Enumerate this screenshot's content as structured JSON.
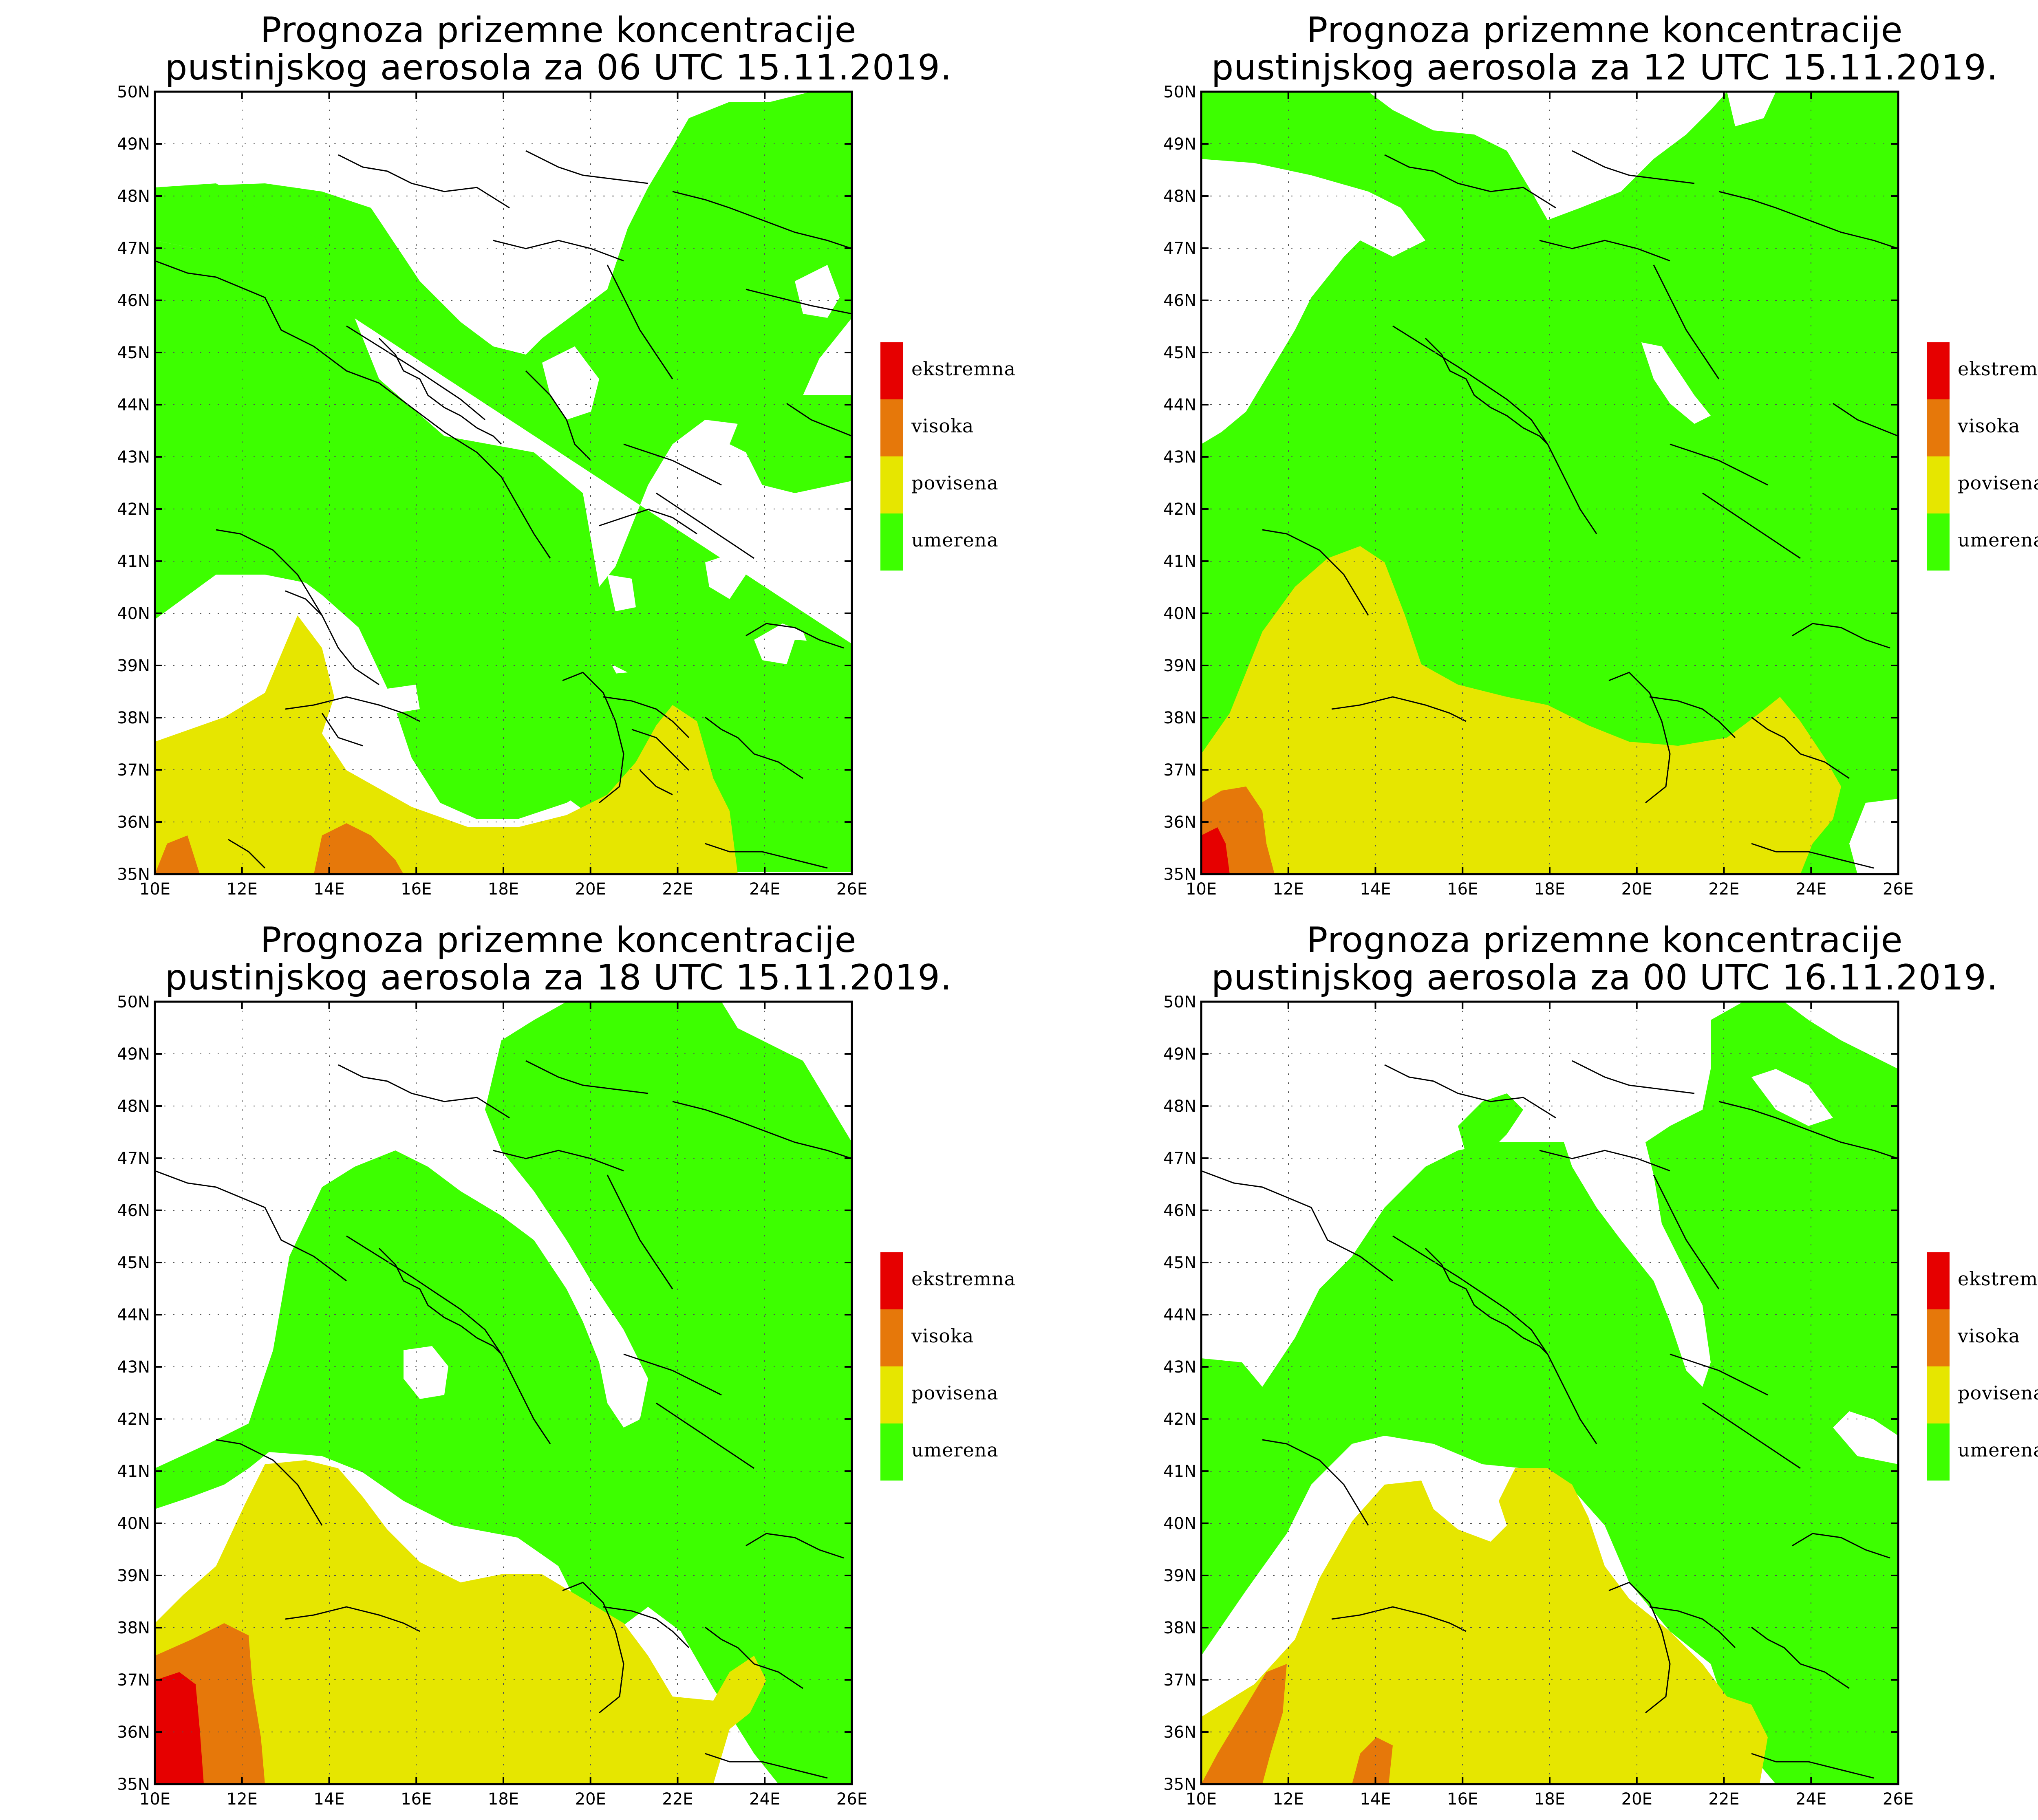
{
  "colors": {
    "umerena": "#3dff00",
    "povisena": "#e6e600",
    "visoka": "#e6780a",
    "ekstremna": "#e60000",
    "border": "#000000",
    "grid": "#555555"
  },
  "axes": {
    "lat_labels": [
      "35N",
      "36N",
      "37N",
      "38N",
      "39N",
      "40N",
      "41N",
      "42N",
      "43N",
      "44N",
      "45N",
      "46N",
      "47N",
      "48N",
      "49N",
      "50N"
    ],
    "lon_labels": [
      "10E",
      "12E",
      "14E",
      "16E",
      "18E",
      "20E",
      "22E",
      "24E",
      "26E"
    ]
  },
  "legend": {
    "items": [
      {
        "key": "ekstremna",
        "label": "ekstremna"
      },
      {
        "key": "visoka",
        "label": "visoka"
      },
      {
        "key": "povisena",
        "label": "povisena"
      },
      {
        "key": "umerena",
        "label": "umerena"
      }
    ]
  },
  "panels": [
    {
      "title_line1": "Prognoza prizemne koncentracije",
      "title_line2": "pustinjskog aerosola za 06 UTC 15.11.2019."
    },
    {
      "title_line1": "Prognoza prizemne koncentracije",
      "title_line2": "pustinjskog aerosola za 12 UTC 15.11.2019."
    },
    {
      "title_line1": "Prognoza prizemne koncentracije",
      "title_line2": "pustinjskog aerosola za 18 UTC 15.11.2019."
    },
    {
      "title_line1": "Prognoza prizemne koncentracije",
      "title_line2": "pustinjskog aerosola za 00 UTC 16.11.2019."
    }
  ]
}
